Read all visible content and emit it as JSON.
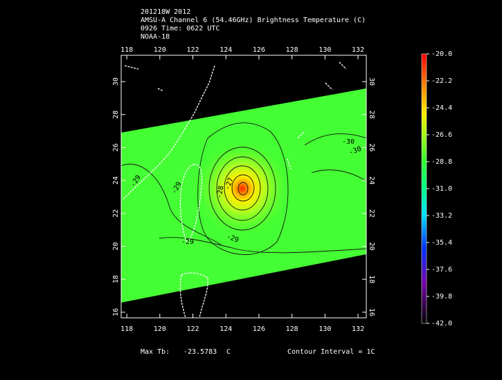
{
  "header": {
    "lines": [
      "201218W 2012",
      "AMSU-A Channel 6 (54.46GHz) Brightness Temperature (C)",
      "0926 Time: 0622 UTC",
      "NOAA-18"
    ]
  },
  "map": {
    "xlim": [
      117.66,
      132.5
    ],
    "ylim": [
      15.66,
      31.6
    ],
    "xticks": [
      118,
      120,
      122,
      124,
      126,
      128,
      130,
      132
    ],
    "yticks": [
      16,
      18,
      20,
      22,
      24,
      26,
      28,
      30
    ],
    "contour_labels": [
      "-29",
      "-29",
      "-28",
      "-27",
      "-30",
      "-30",
      "-29",
      "-29"
    ]
  },
  "colorbar": {
    "range": [
      -42,
      -20
    ],
    "ticks": [
      {
        "value": -20,
        "label": "-20.0"
      },
      {
        "value": -22.2,
        "label": "-22.2"
      },
      {
        "value": -24.4,
        "label": "-24.4"
      },
      {
        "value": -26.6,
        "label": "-26.6"
      },
      {
        "value": -28.8,
        "label": "-28.8"
      },
      {
        "value": -31,
        "label": "-31.0"
      },
      {
        "value": -33.2,
        "label": "-33.2"
      },
      {
        "value": -35.4,
        "label": "-35.4"
      },
      {
        "value": -37.6,
        "label": "-37.6"
      },
      {
        "value": -39.8,
        "label": "-39.8"
      },
      {
        "value": -42,
        "label": "-42.0"
      }
    ]
  },
  "footer": {
    "max_label": "Max Tb:",
    "max_value": -23.5783,
    "unit": "C",
    "contour_interval": "Contour Interval = 1C"
  }
}
